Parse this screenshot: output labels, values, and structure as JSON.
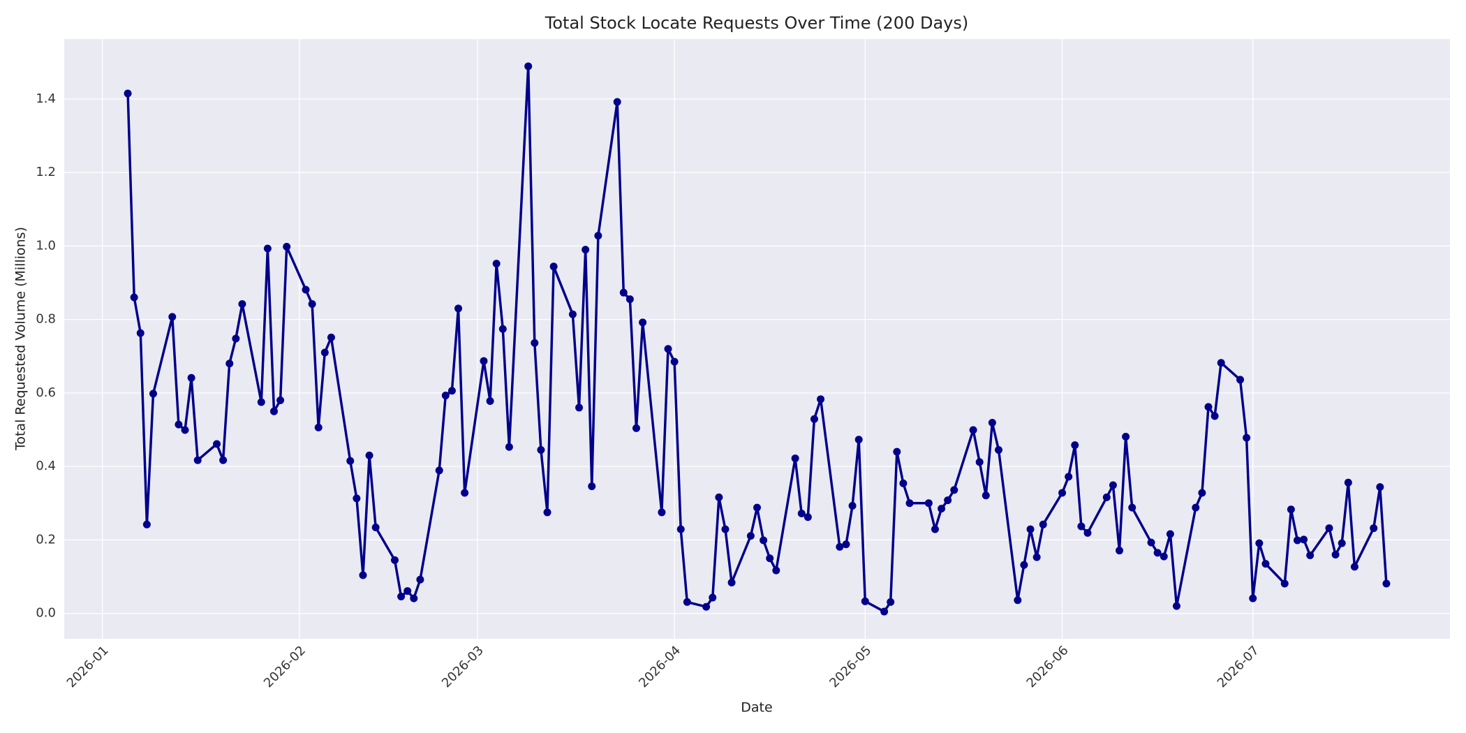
{
  "chart_data": {
    "type": "line",
    "title": "Total Stock Locate Requests Over Time (200 Days)",
    "x_label": "Date",
    "y_label": "Total Requested Volume (Millions)",
    "color": "#00008b",
    "grid": true,
    "x": [
      "2026-01-05",
      "2026-01-06",
      "2026-01-07",
      "2026-01-08",
      "2026-01-09",
      "2026-01-12",
      "2026-01-13",
      "2026-01-14",
      "2026-01-15",
      "2026-01-16",
      "2026-01-19",
      "2026-01-20",
      "2026-01-21",
      "2026-01-22",
      "2026-01-23",
      "2026-01-26",
      "2026-01-27",
      "2026-01-28",
      "2026-01-29",
      "2026-01-30",
      "2026-02-02",
      "2026-02-03",
      "2026-02-04",
      "2026-02-05",
      "2026-02-06",
      "2026-02-09",
      "2026-02-10",
      "2026-02-11",
      "2026-02-12",
      "2026-02-13",
      "2026-02-16",
      "2026-02-17",
      "2026-02-18",
      "2026-02-19",
      "2026-02-20",
      "2026-02-23",
      "2026-02-24",
      "2026-02-25",
      "2026-02-26",
      "2026-02-27",
      "2026-03-02",
      "2026-03-03",
      "2026-03-04",
      "2026-03-05",
      "2026-03-06",
      "2026-03-09",
      "2026-03-10",
      "2026-03-11",
      "2026-03-12",
      "2026-03-13",
      "2026-03-16",
      "2026-03-17",
      "2026-03-18",
      "2026-03-19",
      "2026-03-20",
      "2026-03-23",
      "2026-03-24",
      "2026-03-25",
      "2026-03-26",
      "2026-03-27",
      "2026-03-30",
      "2026-03-31",
      "2026-04-01",
      "2026-04-02",
      "2026-04-03",
      "2026-04-06",
      "2026-04-07",
      "2026-04-08",
      "2026-04-09",
      "2026-04-10",
      "2026-04-13",
      "2026-04-14",
      "2026-04-15",
      "2026-04-16",
      "2026-04-17",
      "2026-04-20",
      "2026-04-21",
      "2026-04-22",
      "2026-04-23",
      "2026-04-24",
      "2026-04-27",
      "2026-04-28",
      "2026-04-29",
      "2026-04-30",
      "2026-05-01",
      "2026-05-04",
      "2026-05-05",
      "2026-05-06",
      "2026-05-07",
      "2026-05-08",
      "2026-05-11",
      "2026-05-12",
      "2026-05-13",
      "2026-05-14",
      "2026-05-15",
      "2026-05-18",
      "2026-05-19",
      "2026-05-20",
      "2026-05-21",
      "2026-05-22",
      "2026-05-25",
      "2026-05-26",
      "2026-05-27",
      "2026-05-28",
      "2026-05-29",
      "2026-06-01",
      "2026-06-02",
      "2026-06-03",
      "2026-06-04",
      "2026-06-05",
      "2026-06-08",
      "2026-06-09",
      "2026-06-10",
      "2026-06-11",
      "2026-06-12",
      "2026-06-15",
      "2026-06-16",
      "2026-06-17",
      "2026-06-18",
      "2026-06-19",
      "2026-06-22",
      "2026-06-23",
      "2026-06-24",
      "2026-06-25",
      "2026-06-26",
      "2026-06-29",
      "2026-06-30",
      "2026-07-01",
      "2026-07-02",
      "2026-07-03",
      "2026-07-06",
      "2026-07-07",
      "2026-07-08",
      "2026-07-09",
      "2026-07-10",
      "2026-07-13",
      "2026-07-14",
      "2026-07-15",
      "2026-07-16",
      "2026-07-17",
      "2026-07-20",
      "2026-07-21",
      "2026-07-22"
    ],
    "values": [
      1.415,
      0.86,
      0.763,
      0.242,
      0.598,
      0.807,
      0.514,
      0.499,
      0.641,
      0.417,
      0.461,
      0.417,
      0.68,
      0.748,
      0.842,
      0.575,
      0.993,
      0.55,
      0.58,
      0.998,
      0.881,
      0.842,
      0.506,
      0.71,
      0.751,
      0.415,
      0.313,
      0.104,
      0.43,
      0.234,
      0.145,
      0.046,
      0.061,
      0.041,
      0.092,
      0.389,
      0.593,
      0.606,
      0.83,
      0.328,
      0.687,
      0.578,
      0.952,
      0.774,
      0.453,
      1.489,
      0.736,
      0.445,
      0.275,
      0.944,
      0.814,
      0.56,
      0.99,
      0.346,
      1.028,
      1.392,
      0.873,
      0.855,
      0.504,
      0.792,
      0.275,
      0.72,
      0.685,
      0.229,
      0.031,
      0.018,
      0.043,
      0.316,
      0.229,
      0.084,
      0.211,
      0.288,
      0.199,
      0.15,
      0.117,
      0.422,
      0.272,
      0.262,
      0.529,
      0.583,
      0.181,
      0.188,
      0.293,
      0.473,
      0.033,
      0.005,
      0.031,
      0.44,
      0.354,
      0.3,
      0.3,
      0.229,
      0.285,
      0.308,
      0.336,
      0.499,
      0.412,
      0.321,
      0.519,
      0.445,
      0.036,
      0.132,
      0.229,
      0.153,
      0.242,
      0.328,
      0.372,
      0.458,
      0.237,
      0.219,
      0.316,
      0.349,
      0.171,
      0.481,
      0.288,
      0.193,
      0.165,
      0.155,
      0.216,
      0.02,
      0.288,
      0.328,
      0.562,
      0.537,
      0.682,
      0.636,
      0.478,
      0.041,
      0.191,
      0.135,
      0.081,
      0.283,
      0.199,
      0.201,
      0.158,
      0.232,
      0.16,
      0.191,
      0.356,
      0.127,
      0.232,
      0.344,
      0.081
    ],
    "xlim": [
      "2025-12-26",
      "2026-08-01"
    ],
    "xticks": [
      {
        "value": "2026-01-01",
        "label": "2026-01"
      },
      {
        "value": "2026-02-01",
        "label": "2026-02"
      },
      {
        "value": "2026-03-01",
        "label": "2026-03"
      },
      {
        "value": "2026-04-01",
        "label": "2026-04"
      },
      {
        "value": "2026-05-01",
        "label": "2026-05"
      },
      {
        "value": "2026-06-01",
        "label": "2026-06"
      },
      {
        "value": "2026-07-01",
        "label": "2026-07"
      }
    ],
    "ylim": [
      -0.069,
      1.563
    ],
    "yticks": [
      {
        "value": 0,
        "label": "0.0"
      },
      0.2,
      0.4,
      0.6,
      0.8,
      {
        "value": 1,
        "label": "1.0"
      },
      1.2,
      1.4
    ]
  }
}
